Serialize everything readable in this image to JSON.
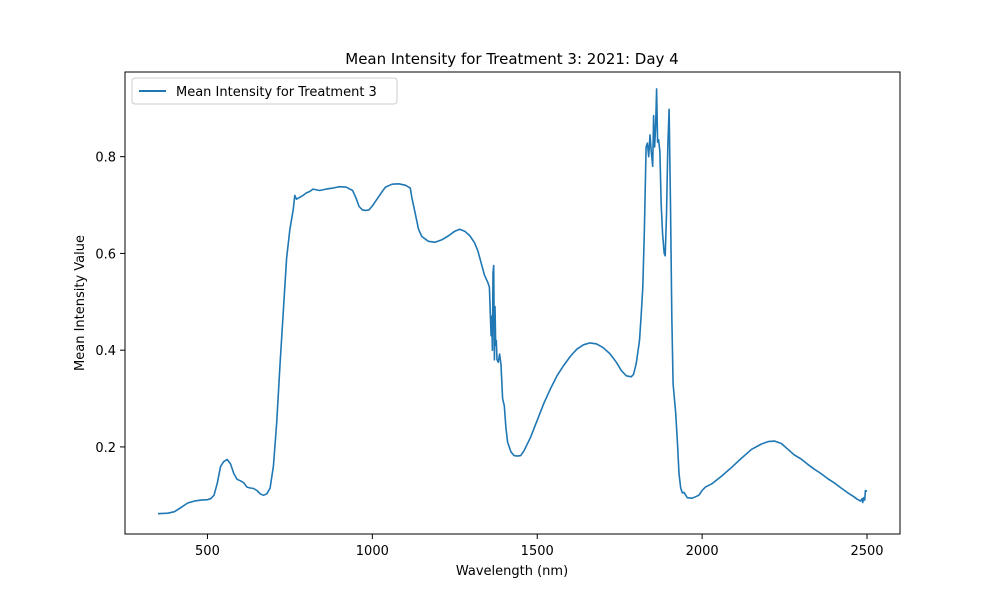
{
  "chart_data": {
    "type": "line",
    "title": "Mean Intensity for Treatment 3: 2021: Day 4",
    "xlabel": "Wavelength (nm)",
    "ylabel": "Mean Intensity Value",
    "xlim": [
      250,
      2600
    ],
    "ylim": [
      0.02,
      0.975
    ],
    "xticks": [
      500,
      1000,
      1500,
      2000,
      2500
    ],
    "yticks": [
      0.2,
      0.4,
      0.6,
      0.8
    ],
    "grid": false,
    "legend_position": "top-left",
    "series": [
      {
        "name": "Mean Intensity for Treatment 3",
        "color": "#1f77b4",
        "points": [
          [
            350,
            0.062
          ],
          [
            380,
            0.063
          ],
          [
            400,
            0.066
          ],
          [
            420,
            0.075
          ],
          [
            440,
            0.084
          ],
          [
            460,
            0.088
          ],
          [
            480,
            0.09
          ],
          [
            500,
            0.091
          ],
          [
            510,
            0.093
          ],
          [
            520,
            0.1
          ],
          [
            530,
            0.125
          ],
          [
            540,
            0.16
          ],
          [
            550,
            0.17
          ],
          [
            560,
            0.174
          ],
          [
            570,
            0.165
          ],
          [
            580,
            0.145
          ],
          [
            590,
            0.133
          ],
          [
            600,
            0.13
          ],
          [
            610,
            0.126
          ],
          [
            620,
            0.117
          ],
          [
            630,
            0.115
          ],
          [
            640,
            0.114
          ],
          [
            650,
            0.11
          ],
          [
            660,
            0.103
          ],
          [
            670,
            0.1
          ],
          [
            680,
            0.103
          ],
          [
            690,
            0.115
          ],
          [
            700,
            0.16
          ],
          [
            710,
            0.25
          ],
          [
            720,
            0.37
          ],
          [
            730,
            0.48
          ],
          [
            740,
            0.59
          ],
          [
            750,
            0.65
          ],
          [
            760,
            0.69
          ],
          [
            765,
            0.72
          ],
          [
            770,
            0.712
          ],
          [
            780,
            0.716
          ],
          [
            790,
            0.72
          ],
          [
            800,
            0.725
          ],
          [
            810,
            0.728
          ],
          [
            820,
            0.733
          ],
          [
            840,
            0.73
          ],
          [
            860,
            0.733
          ],
          [
            880,
            0.735
          ],
          [
            900,
            0.738
          ],
          [
            920,
            0.737
          ],
          [
            940,
            0.73
          ],
          [
            950,
            0.715
          ],
          [
            960,
            0.697
          ],
          [
            970,
            0.69
          ],
          [
            980,
            0.689
          ],
          [
            990,
            0.69
          ],
          [
            1000,
            0.698
          ],
          [
            1010,
            0.708
          ],
          [
            1020,
            0.718
          ],
          [
            1030,
            0.728
          ],
          [
            1040,
            0.737
          ],
          [
            1060,
            0.743
          ],
          [
            1080,
            0.744
          ],
          [
            1100,
            0.741
          ],
          [
            1115,
            0.735
          ],
          [
            1120,
            0.715
          ],
          [
            1130,
            0.683
          ],
          [
            1140,
            0.65
          ],
          [
            1150,
            0.635
          ],
          [
            1170,
            0.625
          ],
          [
            1190,
            0.623
          ],
          [
            1210,
            0.628
          ],
          [
            1230,
            0.636
          ],
          [
            1250,
            0.646
          ],
          [
            1265,
            0.65
          ],
          [
            1280,
            0.646
          ],
          [
            1295,
            0.637
          ],
          [
            1310,
            0.622
          ],
          [
            1320,
            0.605
          ],
          [
            1330,
            0.58
          ],
          [
            1340,
            0.555
          ],
          [
            1350,
            0.54
          ],
          [
            1355,
            0.53
          ],
          [
            1358,
            0.47
          ],
          [
            1360,
            0.43
          ],
          [
            1362,
            0.47
          ],
          [
            1364,
            0.4
          ],
          [
            1366,
            0.56
          ],
          [
            1368,
            0.575
          ],
          [
            1370,
            0.38
          ],
          [
            1372,
            0.49
          ],
          [
            1374,
            0.41
          ],
          [
            1376,
            0.42
          ],
          [
            1378,
            0.38
          ],
          [
            1382,
            0.375
          ],
          [
            1386,
            0.392
          ],
          [
            1390,
            0.37
          ],
          [
            1395,
            0.3
          ],
          [
            1400,
            0.285
          ],
          [
            1405,
            0.24
          ],
          [
            1410,
            0.21
          ],
          [
            1420,
            0.19
          ],
          [
            1430,
            0.182
          ],
          [
            1440,
            0.181
          ],
          [
            1450,
            0.182
          ],
          [
            1460,
            0.192
          ],
          [
            1480,
            0.22
          ],
          [
            1500,
            0.255
          ],
          [
            1520,
            0.29
          ],
          [
            1540,
            0.32
          ],
          [
            1560,
            0.347
          ],
          [
            1580,
            0.368
          ],
          [
            1600,
            0.387
          ],
          [
            1620,
            0.402
          ],
          [
            1640,
            0.411
          ],
          [
            1660,
            0.415
          ],
          [
            1680,
            0.413
          ],
          [
            1700,
            0.405
          ],
          [
            1720,
            0.393
          ],
          [
            1740,
            0.375
          ],
          [
            1755,
            0.358
          ],
          [
            1770,
            0.347
          ],
          [
            1785,
            0.345
          ],
          [
            1792,
            0.35
          ],
          [
            1800,
            0.372
          ],
          [
            1810,
            0.42
          ],
          [
            1815,
            0.47
          ],
          [
            1820,
            0.53
          ],
          [
            1825,
            0.65
          ],
          [
            1830,
            0.82
          ],
          [
            1834,
            0.828
          ],
          [
            1838,
            0.8
          ],
          [
            1842,
            0.845
          ],
          [
            1846,
            0.81
          ],
          [
            1850,
            0.78
          ],
          [
            1853,
            0.885
          ],
          [
            1856,
            0.82
          ],
          [
            1859,
            0.86
          ],
          [
            1862,
            0.94
          ],
          [
            1865,
            0.83
          ],
          [
            1868,
            0.835
          ],
          [
            1872,
            0.81
          ],
          [
            1876,
            0.7
          ],
          [
            1880,
            0.64
          ],
          [
            1885,
            0.6
          ],
          [
            1888,
            0.595
          ],
          [
            1892,
            0.68
          ],
          [
            1896,
            0.82
          ],
          [
            1900,
            0.898
          ],
          [
            1904,
            0.7
          ],
          [
            1908,
            0.47
          ],
          [
            1912,
            0.33
          ],
          [
            1920,
            0.27
          ],
          [
            1925,
            0.21
          ],
          [
            1930,
            0.145
          ],
          [
            1935,
            0.115
          ],
          [
            1940,
            0.105
          ],
          [
            1945,
            0.106
          ],
          [
            1955,
            0.095
          ],
          [
            1970,
            0.094
          ],
          [
            1990,
            0.1
          ],
          [
            2000,
            0.11
          ],
          [
            2010,
            0.117
          ],
          [
            2030,
            0.124
          ],
          [
            2060,
            0.14
          ],
          [
            2090,
            0.158
          ],
          [
            2120,
            0.177
          ],
          [
            2150,
            0.195
          ],
          [
            2180,
            0.206
          ],
          [
            2200,
            0.211
          ],
          [
            2220,
            0.212
          ],
          [
            2240,
            0.207
          ],
          [
            2260,
            0.195
          ],
          [
            2280,
            0.183
          ],
          [
            2300,
            0.175
          ],
          [
            2320,
            0.164
          ],
          [
            2340,
            0.154
          ],
          [
            2360,
            0.145
          ],
          [
            2380,
            0.135
          ],
          [
            2400,
            0.126
          ],
          [
            2420,
            0.116
          ],
          [
            2440,
            0.106
          ],
          [
            2460,
            0.097
          ],
          [
            2470,
            0.092
          ],
          [
            2475,
            0.09
          ],
          [
            2480,
            0.088
          ],
          [
            2485,
            0.093
          ],
          [
            2487,
            0.085
          ],
          [
            2490,
            0.095
          ],
          [
            2493,
            0.09
          ],
          [
            2495,
            0.11
          ],
          [
            2500,
            0.108
          ]
        ]
      }
    ]
  }
}
